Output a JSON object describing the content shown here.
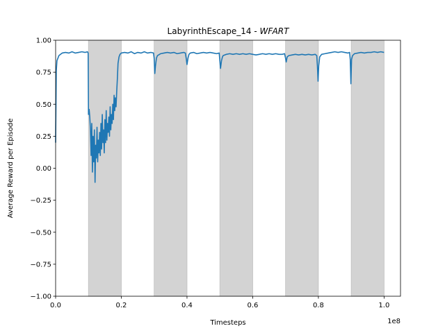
{
  "chart_data": {
    "type": "line",
    "title": {
      "prefix": "LabyrinthEscape_14 - ",
      "emphasis": "WFART"
    },
    "xlabel": "Timesteps",
    "ylabel": "Average Reward per Episode",
    "x_scale_label": "1e8",
    "xlim": [
      0,
      1.05
    ],
    "ylim": [
      -1.0,
      1.0
    ],
    "x_ticks": [
      0.0,
      0.2,
      0.4,
      0.6,
      0.8,
      1.0
    ],
    "x_tick_labels": [
      "0.0",
      "0.2",
      "0.4",
      "0.6",
      "0.8",
      "1.0"
    ],
    "y_ticks": [
      -1.0,
      -0.75,
      -0.5,
      -0.25,
      0.0,
      0.25,
      0.5,
      0.75,
      1.0
    ],
    "y_tick_labels": [
      "−1.00",
      "−0.75",
      "−0.50",
      "−0.25",
      "0.00",
      "0.25",
      "0.50",
      "0.75",
      "1.00"
    ],
    "shaded_regions": [
      [
        0.1,
        0.2
      ],
      [
        0.3,
        0.4
      ],
      [
        0.5,
        0.6
      ],
      [
        0.7,
        0.8
      ],
      [
        0.9,
        1.0
      ]
    ],
    "grid": false,
    "colors": {
      "line": "#1f77b4",
      "shade": "#d3d3d3"
    },
    "series": [
      {
        "points": [
          [
            0.0,
            0.2
          ],
          [
            0.002,
            0.76
          ],
          [
            0.004,
            0.84
          ],
          [
            0.007,
            0.86
          ],
          [
            0.01,
            0.88
          ],
          [
            0.015,
            0.89
          ],
          [
            0.02,
            0.9
          ],
          [
            0.03,
            0.905
          ],
          [
            0.04,
            0.9
          ],
          [
            0.05,
            0.91
          ],
          [
            0.06,
            0.9
          ],
          [
            0.07,
            0.905
          ],
          [
            0.08,
            0.91
          ],
          [
            0.09,
            0.905
          ],
          [
            0.097,
            0.91
          ],
          [
            0.099,
            0.9
          ],
          [
            0.1,
            0.42
          ],
          [
            0.102,
            0.46
          ],
          [
            0.104,
            0.4
          ],
          [
            0.106,
            0.3
          ],
          [
            0.108,
            0.1
          ],
          [
            0.11,
            0.35
          ],
          [
            0.112,
            -0.03
          ],
          [
            0.114,
            0.25
          ],
          [
            0.116,
            0.05
          ],
          [
            0.118,
            0.3
          ],
          [
            0.12,
            -0.11
          ],
          [
            0.122,
            0.18
          ],
          [
            0.124,
            0.08
          ],
          [
            0.126,
            0.32
          ],
          [
            0.128,
            0.05
          ],
          [
            0.13,
            0.22
          ],
          [
            0.132,
            0.12
          ],
          [
            0.134,
            0.28
          ],
          [
            0.136,
            0.1
          ],
          [
            0.138,
            0.35
          ],
          [
            0.14,
            0.15
          ],
          [
            0.142,
            0.42
          ],
          [
            0.144,
            0.2
          ],
          [
            0.146,
            0.3
          ],
          [
            0.148,
            0.12
          ],
          [
            0.15,
            0.38
          ],
          [
            0.152,
            0.2
          ],
          [
            0.154,
            0.45
          ],
          [
            0.156,
            0.22
          ],
          [
            0.158,
            0.35
          ],
          [
            0.16,
            0.28
          ],
          [
            0.162,
            0.4
          ],
          [
            0.164,
            0.25
          ],
          [
            0.166,
            0.48
          ],
          [
            0.168,
            0.3
          ],
          [
            0.17,
            0.42
          ],
          [
            0.172,
            0.35
          ],
          [
            0.174,
            0.5
          ],
          [
            0.176,
            0.38
          ],
          [
            0.178,
            0.57
          ],
          [
            0.18,
            0.45
          ],
          [
            0.182,
            0.55
          ],
          [
            0.184,
            0.48
          ],
          [
            0.186,
            0.6
          ],
          [
            0.188,
            0.7
          ],
          [
            0.19,
            0.82
          ],
          [
            0.193,
            0.87
          ],
          [
            0.196,
            0.89
          ],
          [
            0.2,
            0.9
          ],
          [
            0.21,
            0.905
          ],
          [
            0.22,
            0.9
          ],
          [
            0.23,
            0.91
          ],
          [
            0.24,
            0.895
          ],
          [
            0.25,
            0.905
          ],
          [
            0.26,
            0.9
          ],
          [
            0.27,
            0.91
          ],
          [
            0.28,
            0.9
          ],
          [
            0.29,
            0.905
          ],
          [
            0.298,
            0.9
          ],
          [
            0.3,
            0.86
          ],
          [
            0.302,
            0.74
          ],
          [
            0.304,
            0.8
          ],
          [
            0.307,
            0.86
          ],
          [
            0.31,
            0.88
          ],
          [
            0.32,
            0.895
          ],
          [
            0.33,
            0.9
          ],
          [
            0.34,
            0.905
          ],
          [
            0.35,
            0.9
          ],
          [
            0.36,
            0.905
          ],
          [
            0.37,
            0.895
          ],
          [
            0.38,
            0.9
          ],
          [
            0.39,
            0.905
          ],
          [
            0.395,
            0.9
          ],
          [
            0.398,
            0.85
          ],
          [
            0.4,
            0.81
          ],
          [
            0.403,
            0.86
          ],
          [
            0.406,
            0.89
          ],
          [
            0.41,
            0.9
          ],
          [
            0.42,
            0.905
          ],
          [
            0.43,
            0.895
          ],
          [
            0.44,
            0.9
          ],
          [
            0.45,
            0.905
          ],
          [
            0.46,
            0.9
          ],
          [
            0.47,
            0.905
          ],
          [
            0.48,
            0.9
          ],
          [
            0.49,
            0.895
          ],
          [
            0.498,
            0.9
          ],
          [
            0.5,
            0.84
          ],
          [
            0.502,
            0.78
          ],
          [
            0.505,
            0.84
          ],
          [
            0.508,
            0.87
          ],
          [
            0.51,
            0.88
          ],
          [
            0.52,
            0.89
          ],
          [
            0.53,
            0.895
          ],
          [
            0.54,
            0.89
          ],
          [
            0.55,
            0.895
          ],
          [
            0.56,
            0.89
          ],
          [
            0.57,
            0.895
          ],
          [
            0.58,
            0.89
          ],
          [
            0.59,
            0.895
          ],
          [
            0.6,
            0.89
          ],
          [
            0.61,
            0.885
          ],
          [
            0.62,
            0.89
          ],
          [
            0.63,
            0.895
          ],
          [
            0.64,
            0.89
          ],
          [
            0.65,
            0.895
          ],
          [
            0.66,
            0.89
          ],
          [
            0.67,
            0.895
          ],
          [
            0.68,
            0.89
          ],
          [
            0.69,
            0.89
          ],
          [
            0.697,
            0.895
          ],
          [
            0.7,
            0.86
          ],
          [
            0.702,
            0.83
          ],
          [
            0.705,
            0.87
          ],
          [
            0.71,
            0.88
          ],
          [
            0.72,
            0.885
          ],
          [
            0.73,
            0.89
          ],
          [
            0.74,
            0.885
          ],
          [
            0.75,
            0.89
          ],
          [
            0.76,
            0.885
          ],
          [
            0.77,
            0.89
          ],
          [
            0.78,
            0.885
          ],
          [
            0.79,
            0.89
          ],
          [
            0.795,
            0.88
          ],
          [
            0.797,
            0.8
          ],
          [
            0.799,
            0.68
          ],
          [
            0.801,
            0.8
          ],
          [
            0.804,
            0.87
          ],
          [
            0.81,
            0.89
          ],
          [
            0.82,
            0.895
          ],
          [
            0.83,
            0.9
          ],
          [
            0.84,
            0.905
          ],
          [
            0.85,
            0.91
          ],
          [
            0.86,
            0.905
          ],
          [
            0.87,
            0.91
          ],
          [
            0.88,
            0.905
          ],
          [
            0.89,
            0.9
          ],
          [
            0.895,
            0.905
          ],
          [
            0.897,
            0.85
          ],
          [
            0.899,
            0.66
          ],
          [
            0.901,
            0.85
          ],
          [
            0.904,
            0.88
          ],
          [
            0.91,
            0.895
          ],
          [
            0.92,
            0.9
          ],
          [
            0.93,
            0.905
          ],
          [
            0.94,
            0.9
          ],
          [
            0.95,
            0.905
          ],
          [
            0.96,
            0.905
          ],
          [
            0.97,
            0.91
          ],
          [
            0.98,
            0.905
          ],
          [
            0.99,
            0.91
          ],
          [
            1.0,
            0.905
          ]
        ]
      }
    ]
  }
}
